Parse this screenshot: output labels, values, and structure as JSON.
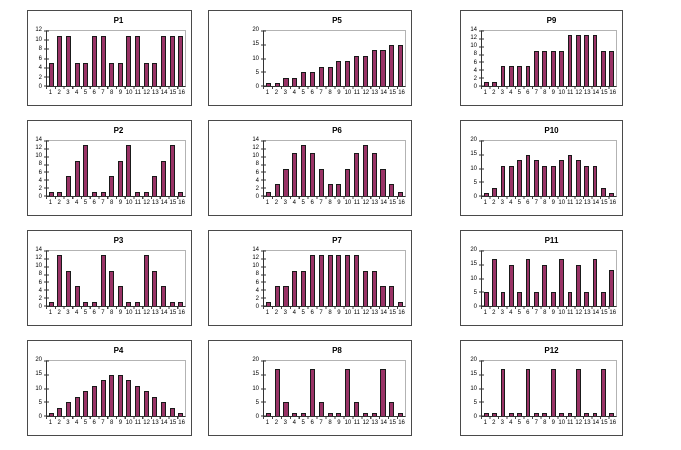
{
  "page": {
    "background": "#ffffff",
    "description": "Grid of 12 small bar charts labelled P1 to P12, arranged 4 rows by 3 columns, numbered down the columns"
  },
  "style": {
    "bar_fill": "#993366",
    "bar_border": "#1a1a1a",
    "axis_color": "#333333",
    "plot_frame_color": "#b3b3b3",
    "chart_border_color": "#4a4a4a",
    "title_color": "#000000",
    "tick_label_color": "#000000"
  },
  "chart_data": [
    {
      "type": "bar",
      "title": "P1",
      "xlabel": "",
      "ylabel": "",
      "categories": [
        "1",
        "2",
        "3",
        "4",
        "5",
        "6",
        "7",
        "8",
        "9",
        "10",
        "11",
        "12",
        "13",
        "14",
        "15",
        "16"
      ],
      "values": [
        5,
        11,
        11,
        5,
        5,
        11,
        11,
        5,
        5,
        11,
        11,
        5,
        5,
        11,
        11,
        11
      ],
      "ylim": [
        0,
        12
      ],
      "yticks": [
        0,
        2,
        4,
        6,
        8,
        10,
        12
      ],
      "grid": "off",
      "legend": "none"
    },
    {
      "type": "bar",
      "title": "P2",
      "xlabel": "",
      "ylabel": "",
      "categories": [
        "1",
        "2",
        "3",
        "4",
        "5",
        "6",
        "7",
        "8",
        "9",
        "10",
        "11",
        "12",
        "13",
        "14",
        "15",
        "16"
      ],
      "values": [
        1,
        1,
        5,
        9,
        13,
        1,
        1,
        5,
        9,
        13,
        1,
        1,
        5,
        9,
        13,
        1
      ],
      "ylim": [
        0,
        14
      ],
      "yticks": [
        0,
        2,
        4,
        6,
        8,
        10,
        12,
        14
      ],
      "grid": "off",
      "legend": "none"
    },
    {
      "type": "bar",
      "title": "P3",
      "xlabel": "",
      "ylabel": "",
      "categories": [
        "1",
        "2",
        "3",
        "4",
        "5",
        "6",
        "7",
        "8",
        "9",
        "10",
        "11",
        "12",
        "13",
        "14",
        "15",
        "16"
      ],
      "values": [
        1,
        13,
        9,
        5,
        1,
        1,
        13,
        9,
        5,
        1,
        1,
        13,
        9,
        5,
        1,
        1
      ],
      "ylim": [
        0,
        14
      ],
      "yticks": [
        0,
        2,
        4,
        6,
        8,
        10,
        12,
        14
      ],
      "grid": "off",
      "legend": "none"
    },
    {
      "type": "bar",
      "title": "P4",
      "xlabel": "",
      "ylabel": "",
      "categories": [
        "1",
        "2",
        "3",
        "4",
        "5",
        "6",
        "7",
        "8",
        "9",
        "10",
        "11",
        "12",
        "13",
        "14",
        "15",
        "16"
      ],
      "values": [
        1,
        3,
        5,
        7,
        9,
        11,
        13,
        15,
        15,
        13,
        11,
        9,
        7,
        5,
        3,
        1
      ],
      "ylim": [
        0,
        20
      ],
      "yticks": [
        0,
        5,
        10,
        15,
        20
      ],
      "grid": "off",
      "legend": "none"
    },
    {
      "type": "bar",
      "title": "P5",
      "xlabel": "",
      "ylabel": "",
      "categories": [
        "1",
        "2",
        "3",
        "4",
        "5",
        "6",
        "7",
        "8",
        "9",
        "10",
        "11",
        "12",
        "13",
        "14",
        "15",
        "16"
      ],
      "values": [
        1,
        1,
        3,
        3,
        5,
        5,
        7,
        7,
        9,
        9,
        11,
        11,
        13,
        13,
        15,
        15
      ],
      "ylim": [
        0,
        20
      ],
      "yticks": [
        0,
        5,
        10,
        15,
        20
      ],
      "grid": "off",
      "legend": "none"
    },
    {
      "type": "bar",
      "title": "P6",
      "xlabel": "",
      "ylabel": "",
      "categories": [
        "1",
        "2",
        "3",
        "4",
        "5",
        "6",
        "7",
        "8",
        "9",
        "10",
        "11",
        "12",
        "13",
        "14",
        "15",
        "16"
      ],
      "values": [
        1,
        3,
        7,
        11,
        13,
        11,
        7,
        3,
        3,
        7,
        11,
        13,
        11,
        7,
        3,
        1
      ],
      "ylim": [
        0,
        14
      ],
      "yticks": [
        0,
        2,
        4,
        6,
        8,
        10,
        12,
        14
      ],
      "grid": "off",
      "legend": "none"
    },
    {
      "type": "bar",
      "title": "P7",
      "xlabel": "",
      "ylabel": "",
      "categories": [
        "1",
        "2",
        "3",
        "4",
        "5",
        "6",
        "7",
        "8",
        "9",
        "10",
        "11",
        "12",
        "13",
        "14",
        "15",
        "16"
      ],
      "values": [
        1,
        5,
        5,
        9,
        9,
        13,
        13,
        13,
        13,
        13,
        13,
        9,
        9,
        5,
        5,
        1
      ],
      "ylim": [
        0,
        14
      ],
      "yticks": [
        0,
        2,
        4,
        6,
        8,
        10,
        12,
        14
      ],
      "grid": "off",
      "legend": "none"
    },
    {
      "type": "bar",
      "title": "P8",
      "xlabel": "",
      "ylabel": "",
      "categories": [
        "1",
        "2",
        "3",
        "4",
        "5",
        "6",
        "7",
        "8",
        "9",
        "10",
        "11",
        "12",
        "13",
        "14",
        "15",
        "16"
      ],
      "values": [
        1,
        17,
        5,
        1,
        1,
        17,
        5,
        1,
        1,
        17,
        5,
        1,
        1,
        17,
        5,
        1
      ],
      "ylim": [
        0,
        20
      ],
      "yticks": [
        0,
        5,
        10,
        15,
        20
      ],
      "grid": "off",
      "legend": "none"
    },
    {
      "type": "bar",
      "title": "P9",
      "xlabel": "",
      "ylabel": "",
      "categories": [
        "1",
        "2",
        "3",
        "4",
        "5",
        "6",
        "7",
        "8",
        "9",
        "10",
        "11",
        "12",
        "13",
        "14",
        "15",
        "16"
      ],
      "values": [
        1,
        1,
        5,
        5,
        5,
        5,
        9,
        9,
        9,
        9,
        13,
        13,
        13,
        13,
        9,
        9
      ],
      "ylim": [
        0,
        14
      ],
      "yticks": [
        0,
        2,
        4,
        6,
        8,
        10,
        12,
        14
      ],
      "grid": "off",
      "legend": "none"
    },
    {
      "type": "bar",
      "title": "P10",
      "xlabel": "",
      "ylabel": "",
      "categories": [
        "1",
        "2",
        "3",
        "4",
        "5",
        "6",
        "7",
        "8",
        "9",
        "10",
        "11",
        "12",
        "13",
        "14",
        "15",
        "16"
      ],
      "values": [
        1,
        3,
        11,
        11,
        13,
        15,
        13,
        11,
        11,
        13,
        15,
        13,
        11,
        11,
        3,
        1
      ],
      "ylim": [
        0,
        20
      ],
      "yticks": [
        0,
        5,
        10,
        15,
        20
      ],
      "grid": "off",
      "legend": "none"
    },
    {
      "type": "bar",
      "title": "P11",
      "xlabel": "",
      "ylabel": "",
      "categories": [
        "1",
        "2",
        "3",
        "4",
        "5",
        "6",
        "7",
        "8",
        "9",
        "10",
        "11",
        "12",
        "13",
        "14",
        "15",
        "16"
      ],
      "values": [
        5,
        17,
        5,
        15,
        5,
        17,
        5,
        15,
        5,
        17,
        5,
        15,
        5,
        17,
        5,
        13
      ],
      "ylim": [
        0,
        20
      ],
      "yticks": [
        0,
        5,
        10,
        15,
        20
      ],
      "grid": "off",
      "legend": "none"
    },
    {
      "type": "bar",
      "title": "P12",
      "xlabel": "",
      "ylabel": "",
      "categories": [
        "1",
        "2",
        "3",
        "4",
        "5",
        "6",
        "7",
        "8",
        "9",
        "10",
        "11",
        "12",
        "13",
        "14",
        "15",
        "16"
      ],
      "values": [
        1,
        1,
        17,
        1,
        1,
        17,
        1,
        1,
        17,
        1,
        1,
        17,
        1,
        1,
        17,
        1
      ],
      "ylim": [
        0,
        20
      ],
      "yticks": [
        0,
        5,
        10,
        15,
        20
      ],
      "grid": "off",
      "legend": "none"
    }
  ]
}
